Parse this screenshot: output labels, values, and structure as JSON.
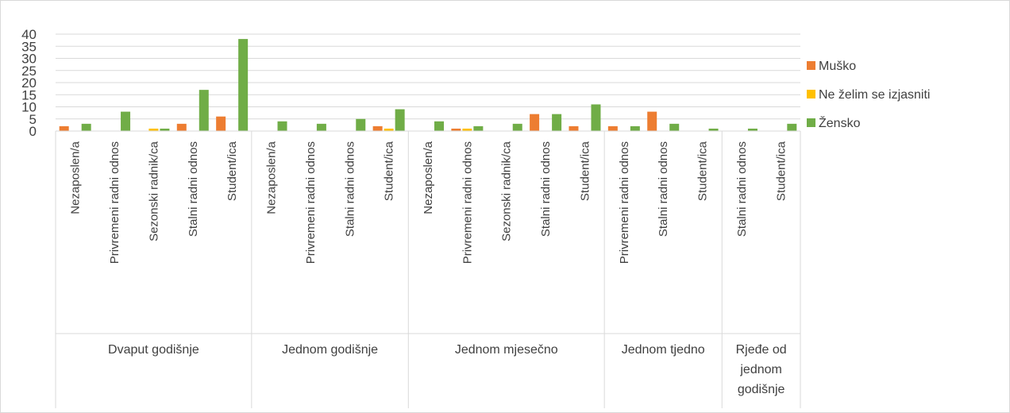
{
  "chart_data": {
    "type": "bar",
    "ylim": [
      0,
      40
    ],
    "yticks": [
      "0",
      "5",
      "10",
      "15",
      "20",
      "25",
      "30",
      "35",
      "40"
    ],
    "grid": true,
    "legend_position": "right",
    "groups": [
      {
        "label": "Dvaput godišnje",
        "categories": [
          "Nezaposlen/a",
          "Privremeni radni odnos",
          "Sezonski radnik/ca",
          "Stalni radni odnos",
          "Student/ica"
        ]
      },
      {
        "label": "Jednom godišnje",
        "categories": [
          "Nezaposlen/a",
          "Privremeni radni odnos",
          "Stalni radni odnos",
          "Student/ica"
        ]
      },
      {
        "label": "Jednom mjesečno",
        "categories": [
          "Nezaposlen/a",
          "Privremeni radni odnos",
          "Sezonski radnik/ca",
          "Stalni radni odnos",
          "Student/ica"
        ]
      },
      {
        "label": "Jednom tjedno",
        "categories": [
          "Privremeni radni odnos",
          "Stalni radni odnos",
          "Student/ica"
        ]
      },
      {
        "label": "Rjeđe od jednom godišnje",
        "categories": [
          "Stalni radni odnos",
          "Student/ica"
        ]
      }
    ],
    "series": [
      {
        "name": "Muško",
        "color": "#ED7D31",
        "values": [
          2,
          0,
          0,
          3,
          6,
          0,
          0,
          0,
          2,
          0,
          1,
          0,
          7,
          2,
          2,
          8,
          0,
          0,
          0
        ]
      },
      {
        "name": "Ne želim se izjasniti",
        "color": "#FFC000",
        "values": [
          0,
          0,
          1,
          0,
          0,
          0,
          0,
          0,
          1,
          0,
          1,
          0,
          0,
          0,
          0,
          0,
          0,
          0,
          0
        ]
      },
      {
        "name": "Žensko",
        "color": "#70AD47",
        "values": [
          3,
          8,
          1,
          17,
          38,
          4,
          3,
          5,
          9,
          4,
          2,
          3,
          7,
          11,
          2,
          3,
          1,
          1,
          3
        ]
      }
    ]
  }
}
